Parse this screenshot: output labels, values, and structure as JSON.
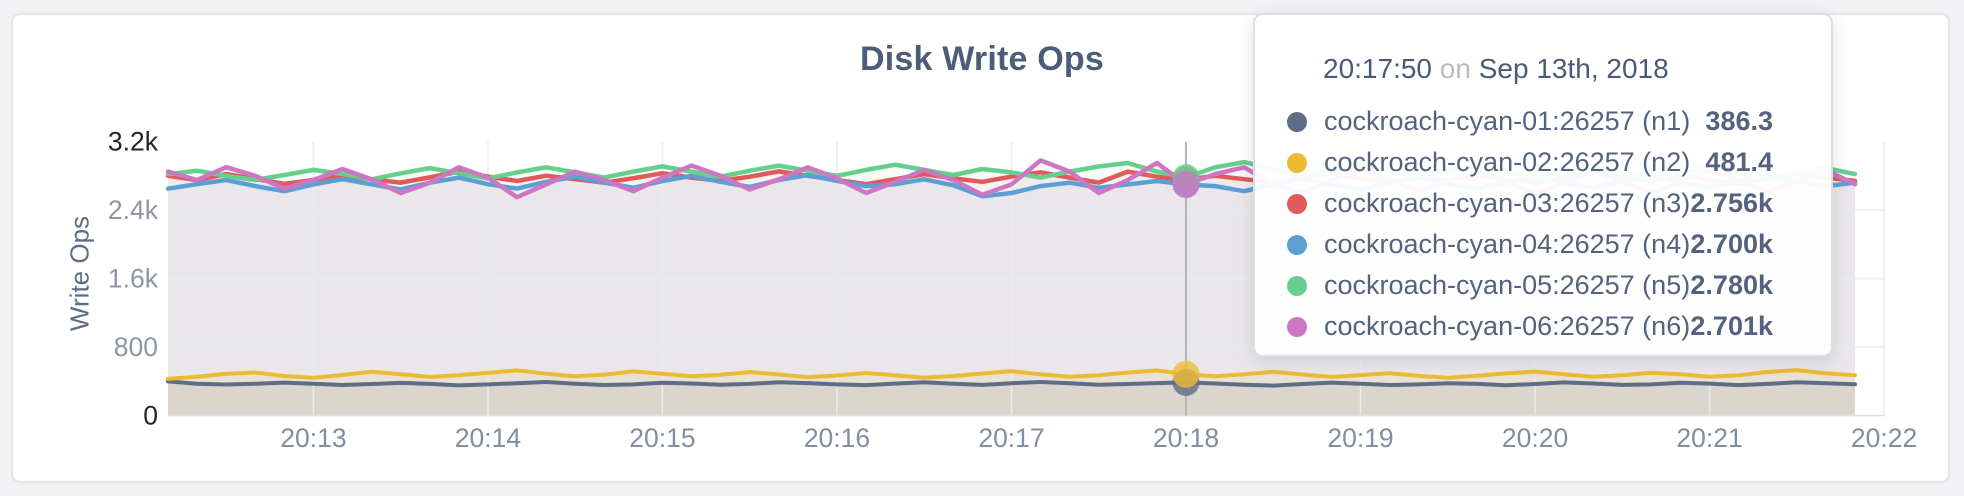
{
  "chart": {
    "title": "Disk Write Ops",
    "y_axis_label": "Write Ops"
  },
  "tooltip": {
    "time": "20:17:50",
    "conjunction": "on",
    "date": "Sep 13th, 2018",
    "rows": [
      {
        "name": "cockroach-cyan-01:26257 (n1)",
        "value": "386.3",
        "color": "#5f6c87"
      },
      {
        "name": "cockroach-cyan-02:26257 (n2)",
        "value": "481.4",
        "color": "#edbb33"
      },
      {
        "name": "cockroach-cyan-03:26257 (n3)",
        "value": "2.756k",
        "color": "#e1595a"
      },
      {
        "name": "cockroach-cyan-04:26257 (n4)",
        "value": "2.700k",
        "color": "#5c9fd4"
      },
      {
        "name": "cockroach-cyan-05:26257 (n5)",
        "value": "2.780k",
        "color": "#67cf8e"
      },
      {
        "name": "cockroach-cyan-06:26257 (n6)",
        "value": "2.701k",
        "color": "#cd77c4"
      }
    ]
  },
  "colors": {
    "grid": "#ebebee",
    "axis_line": "#e0e0e4",
    "hover_line": "#b6b6ba",
    "tick_emphasis": "#20242c",
    "tick_normal": "#8d95a6",
    "x_tick": "#828da1",
    "title": "#4d5c7a",
    "tooltip_text": "#54627e"
  },
  "chart_data": {
    "type": "line",
    "title": "Disk Write Ops",
    "xlabel": "",
    "ylabel": "Write Ops",
    "ylim": [
      0,
      3200
    ],
    "grid": true,
    "legend_position": "tooltip-only",
    "y_ticks": [
      {
        "label": "3.2k",
        "value": 3200,
        "grid": false,
        "emphasis": true
      },
      {
        "label": "2.4k",
        "value": 2400,
        "grid": true,
        "emphasis": false
      },
      {
        "label": "1.6k",
        "value": 1600,
        "grid": true,
        "emphasis": false
      },
      {
        "label": "800",
        "value": 800,
        "grid": true,
        "emphasis": false
      },
      {
        "label": "0",
        "value": 0,
        "grid": false,
        "emphasis": true
      }
    ],
    "x_ticks": [
      {
        "label": "20:13",
        "t": 50
      },
      {
        "label": "20:14",
        "t": 110
      },
      {
        "label": "20:15",
        "t": 170
      },
      {
        "label": "20:16",
        "t": 230
      },
      {
        "label": "20:17",
        "t": 290
      },
      {
        "label": "20:18",
        "t": 350
      },
      {
        "label": "20:19",
        "t": 410
      },
      {
        "label": "20:20",
        "t": 470
      },
      {
        "label": "20:21",
        "t": 530
      },
      {
        "label": "20:22",
        "t": 590
      }
    ],
    "sample_step_seconds": 10,
    "hover": {
      "index": 35,
      "time": "20:17:50"
    },
    "series": [
      {
        "name": "cockroach-cyan-01:26257 (n1)",
        "color": "#5f6c87",
        "fill_opacity": 0.1,
        "stroke_width": 4,
        "values": [
          398,
          372,
          362,
          371,
          384,
          370,
          356,
          368,
          381,
          369,
          352,
          363,
          377,
          391,
          372,
          357,
          364,
          383,
          374,
          360,
          369,
          388,
          379,
          363,
          355,
          373,
          389,
          371,
          358,
          377,
          392,
          376,
          359,
          368,
          379,
          386.3,
          374,
          359,
          349,
          368,
          384,
          371,
          356,
          364,
          378,
          369,
          354,
          368,
          387,
          374,
          358,
          363,
          382,
          373,
          355,
          369,
          388,
          378,
          365
        ]
      },
      {
        "name": "cockroach-cyan-02:26257 (n2)",
        "color": "#edbb33",
        "fill_opacity": 0.13,
        "stroke_width": 4,
        "values": [
          428,
          452,
          487,
          503,
          462,
          441,
          473,
          512,
          482,
          451,
          470,
          498,
          528,
          489,
          458,
          478,
          515,
          488,
          459,
          477,
          508,
          479,
          449,
          468,
          497,
          471,
          443,
          462,
          491,
          519,
          481,
          452,
          470,
          502,
          527,
          481.4,
          459,
          483,
          511,
          479,
          451,
          472,
          494,
          463,
          441,
          464,
          492,
          513,
          483,
          453,
          471,
          499,
          482,
          454,
          470,
          509,
          531,
          492,
          470
        ]
      },
      {
        "name": "cockroach-cyan-03:26257 (n3)",
        "color": "#e1595a",
        "fill_opacity": 0.055,
        "stroke_width": 4.5,
        "values": [
          2802,
          2751,
          2823,
          2764,
          2708,
          2752,
          2806,
          2761,
          2722,
          2783,
          2851,
          2792,
          2741,
          2803,
          2763,
          2721,
          2773,
          2832,
          2781,
          2742,
          2791,
          2853,
          2801,
          2752,
          2703,
          2762,
          2821,
          2771,
          2731,
          2792,
          2842,
          2781,
          2722,
          2851,
          2791,
          2756,
          2801,
          2762,
          2723,
          2781,
          2832,
          2771,
          2732,
          2791,
          2751,
          2812,
          2761,
          2721,
          2782,
          2841,
          2791,
          2742,
          2801,
          2752,
          2712,
          2771,
          2822,
          2781,
          2742
        ]
      },
      {
        "name": "cockroach-cyan-04:26257 (n4)",
        "color": "#5c9fd4",
        "fill_opacity": 0.055,
        "stroke_width": 4.5,
        "values": [
          2652,
          2703,
          2752,
          2681,
          2622,
          2701,
          2762,
          2702,
          2641,
          2721,
          2781,
          2703,
          2652,
          2731,
          2791,
          2722,
          2661,
          2741,
          2801,
          2731,
          2671,
          2752,
          2811,
          2742,
          2681,
          2703,
          2761,
          2691,
          2562,
          2601,
          2681,
          2721,
          2661,
          2701,
          2741,
          2700,
          2681,
          2622,
          2701,
          2761,
          2701,
          2641,
          2722,
          2781,
          2711,
          2652,
          2731,
          2791,
          2721,
          2661,
          2741,
          2801,
          2731,
          2671,
          2752,
          2811,
          2741,
          2681,
          2721
        ]
      },
      {
        "name": "cockroach-cyan-05:26257 (n5)",
        "color": "#67cf8e",
        "fill_opacity": 0.06,
        "stroke_width": 4.5,
        "values": [
          2821,
          2861,
          2801,
          2752,
          2811,
          2871,
          2822,
          2761,
          2831,
          2891,
          2831,
          2771,
          2841,
          2901,
          2841,
          2781,
          2851,
          2911,
          2851,
          2791,
          2861,
          2921,
          2861,
          2801,
          2871,
          2931,
          2871,
          2811,
          2881,
          2841,
          2781,
          2851,
          2911,
          2951,
          2851,
          2780,
          2901,
          2961,
          2881,
          2801,
          2871,
          2931,
          2861,
          2791,
          2861,
          2921,
          2851,
          2781,
          2851,
          2911,
          2841,
          2771,
          2841,
          2901,
          2831,
          2761,
          2831,
          2891,
          2821
        ]
      },
      {
        "name": "cockroach-cyan-06:26257 (n6)",
        "color": "#cd77c4",
        "fill_opacity": 0.05,
        "stroke_width": 4.5,
        "values": [
          2852,
          2751,
          2902,
          2801,
          2651,
          2752,
          2881,
          2761,
          2601,
          2721,
          2901,
          2781,
          2551,
          2701,
          2851,
          2752,
          2621,
          2781,
          2921,
          2801,
          2641,
          2761,
          2901,
          2771,
          2601,
          2731,
          2871,
          2751,
          2581,
          2701,
          2981,
          2851,
          2601,
          2751,
          2951,
          2701,
          2821,
          2901,
          2701,
          2601,
          2751,
          2881,
          2761,
          2621,
          2741,
          2861,
          2731,
          2591,
          2721,
          2851,
          2741,
          2601,
          2731,
          2861,
          2751,
          2611,
          2741,
          2871,
          2701
        ]
      }
    ]
  }
}
